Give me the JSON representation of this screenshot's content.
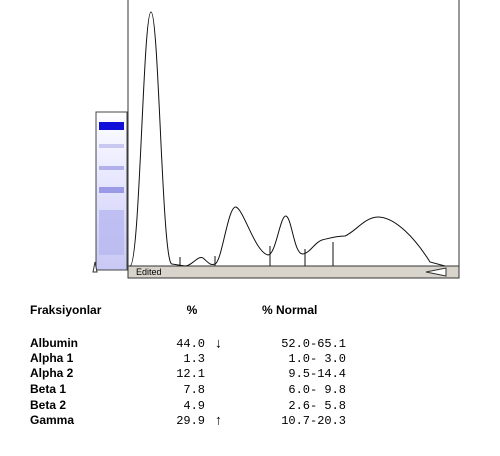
{
  "graph": {
    "label": "Edited"
  },
  "table": {
    "header": {
      "name": "Fraksiyonlar",
      "pct": "%",
      "normal": "% Normal"
    },
    "rows": [
      {
        "name": "Albumin",
        "pct": "44.0",
        "flag": "↓",
        "normal": "52.0-65.1"
      },
      {
        "name": "Alpha 1",
        "pct": "1.3",
        "normal": "1.0- 3.0"
      },
      {
        "name": "Alpha 2",
        "pct": "12.1",
        "normal": "9.5-14.4"
      },
      {
        "name": "Beta 1",
        "pct": "7.8",
        "normal": "6.0- 9.8"
      },
      {
        "name": "Beta 2",
        "pct": "4.9",
        "normal": "2.6- 5.8"
      },
      {
        "name": "Gamma",
        "pct": "29.9",
        "flag": "↑",
        "normal": "10.7-20.3"
      }
    ]
  }
}
